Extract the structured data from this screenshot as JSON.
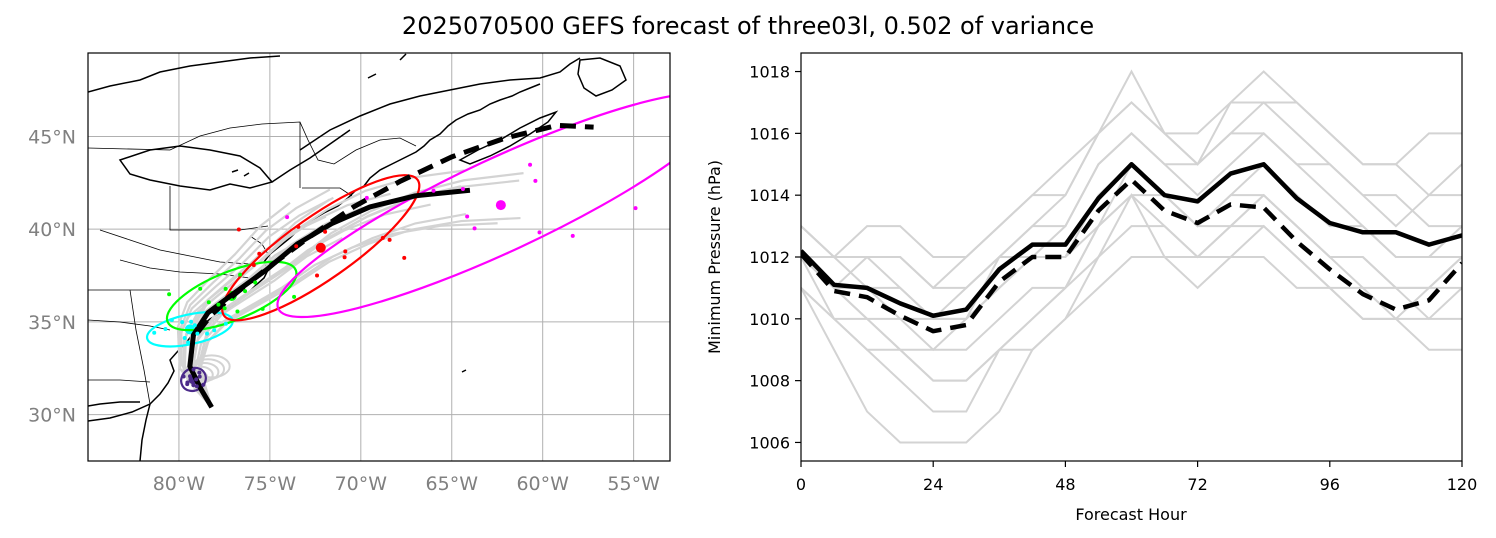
{
  "title": "2025070500 GEFS forecast of three03l, 0.502 of variance",
  "colors": {
    "ensemble_member": "#d3d3d3",
    "track_mean": "#000000",
    "ellipse_24h": "#00ffff",
    "ellipse_48h": "#00ff00",
    "ellipse_72h": "#ff0000",
    "ellipse_96h": "#ff00ff",
    "ellipse_0h": "#4b2a8a",
    "grid": "#b0b0b0"
  },
  "chart_data": [
    {
      "type": "line",
      "subtype": "map-track",
      "name": "track_map",
      "projection": "PlateCarree",
      "xlim": [
        -85,
        -53
      ],
      "ylim": [
        27.5,
        49.5
      ],
      "x_ticks": [
        -80,
        -75,
        -70,
        -65,
        -60,
        -55
      ],
      "x_tick_labels": [
        "80°W",
        "75°W",
        "70°W",
        "65°W",
        "60°W",
        "55°W"
      ],
      "y_ticks": [
        30,
        35,
        40,
        45
      ],
      "y_tick_labels": [
        "30°N",
        "35°N",
        "40°N",
        "45°N"
      ],
      "grid": true,
      "series": [
        {
          "style": "solid",
          "lon": [
            -78.2,
            -78.8,
            -79.4,
            -79.2,
            -78.4,
            -76.9,
            -75.2,
            -73.5,
            -71.6,
            -69.5,
            -67.0,
            -64.0
          ],
          "lat": [
            30.4,
            31.4,
            32.6,
            34.3,
            35.5,
            36.6,
            37.8,
            39.2,
            40.3,
            41.2,
            41.8,
            42.1
          ]
        },
        {
          "style": "dashed",
          "lon": [
            -79.0,
            -78.2,
            -76.8,
            -75.0,
            -72.8,
            -70.4,
            -67.8,
            -65.0,
            -62.1,
            -59.2,
            -57.2
          ],
          "lat": [
            34.4,
            35.4,
            36.6,
            38.0,
            39.6,
            41.2,
            42.6,
            43.9,
            44.9,
            45.6,
            45.5
          ]
        }
      ],
      "ellipses": [
        {
          "forecast_hour": 0,
          "center": [
            -79.2,
            31.9
          ],
          "semi_axes": [
            0.7,
            0.6
          ],
          "angle": 30
        },
        {
          "forecast_hour": 24,
          "center": [
            -79.4,
            34.6
          ],
          "semi_axes": [
            2.4,
            0.8
          ],
          "angle": 12
        },
        {
          "forecast_hour": 48,
          "center": [
            -77.1,
            36.4
          ],
          "semi_axes": [
            3.8,
            1.3
          ],
          "angle": 22
        },
        {
          "forecast_hour": 72,
          "center": [
            -72.2,
            39.0
          ],
          "semi_axes": [
            6.5,
            1.7
          ],
          "angle": 35
        },
        {
          "forecast_hour": 96,
          "center": [
            -62.3,
            41.3
          ],
          "semi_axes": [
            13.5,
            2.5
          ],
          "angle": 25
        }
      ]
    },
    {
      "type": "line",
      "name": "pressure",
      "xlabel": "Forecast Hour",
      "ylabel": "Minimum Pressure (hPa)",
      "xlim": [
        0,
        120
      ],
      "ylim": [
        1005.4,
        1018.6
      ],
      "x_ticks": [
        0,
        24,
        48,
        72,
        96,
        120
      ],
      "y_ticks": [
        1006,
        1008,
        1010,
        1012,
        1014,
        1016,
        1018
      ],
      "grid": false,
      "series": [
        {
          "style": "solid",
          "x": [
            0,
            6,
            12,
            18,
            24,
            30,
            36,
            42,
            48,
            54,
            60,
            66,
            72,
            78,
            84,
            90,
            96,
            102,
            108,
            114,
            120
          ],
          "values": [
            1012.2,
            1011.1,
            1011.0,
            1010.5,
            1010.1,
            1010.3,
            1011.6,
            1012.4,
            1012.4,
            1013.9,
            1015.0,
            1014.0,
            1013.8,
            1014.7,
            1015.0,
            1013.9,
            1013.1,
            1012.8,
            1012.8,
            1012.4,
            1012.7
          ]
        },
        {
          "style": "dashed",
          "x": [
            0,
            6,
            12,
            18,
            24,
            30,
            36,
            42,
            48,
            54,
            60,
            66,
            72,
            78,
            84,
            90,
            96,
            102,
            108,
            114,
            120
          ],
          "values": [
            1012.1,
            1010.9,
            1010.7,
            1010.1,
            1009.6,
            1009.8,
            1011.2,
            1012.0,
            1012.0,
            1013.5,
            1014.5,
            1013.5,
            1013.1,
            1013.7,
            1013.6,
            1012.5,
            1011.6,
            1010.8,
            1010.3,
            1010.6,
            1011.8
          ]
        }
      ],
      "ensemble_members": [
        {
          "x": [
            0,
            6,
            12,
            18,
            24,
            30,
            36,
            42,
            48,
            54,
            60,
            66,
            72,
            78,
            84,
            90,
            96,
            102,
            108,
            114,
            120
          ],
          "values": [
            1012,
            1011,
            1010,
            1009,
            1008,
            1008,
            1009,
            1010,
            1011,
            1013,
            1014,
            1013,
            1012,
            1013,
            1013,
            1012,
            1011,
            1010,
            1010,
            1011,
            1012
          ]
        },
        {
          "x": [
            0,
            6,
            12,
            18,
            24,
            30,
            36,
            42,
            48,
            54,
            60,
            66,
            72,
            78,
            84,
            90,
            96,
            102,
            108,
            114,
            120
          ],
          "values": [
            1013,
            1012,
            1012,
            1011,
            1010,
            1010,
            1012,
            1013,
            1013,
            1015,
            1016,
            1015,
            1014,
            1015,
            1016,
            1015,
            1014,
            1013,
            1012,
            1012,
            1013
          ]
        },
        {
          "x": [
            0,
            6,
            12,
            18,
            24,
            30,
            36,
            42,
            48,
            54,
            60,
            66,
            72,
            78,
            84,
            90,
            96,
            102,
            108,
            114,
            120
          ],
          "values": [
            1011,
            1009,
            1007,
            1006,
            1006,
            1006,
            1007,
            1009,
            1010,
            1012,
            1014,
            1012,
            1012,
            1013,
            1014,
            1013,
            1012,
            1011,
            1011,
            1010,
            1011
          ]
        },
        {
          "x": [
            0,
            6,
            12,
            18,
            24,
            30,
            36,
            42,
            48,
            54,
            60,
            66,
            72,
            78,
            84,
            90,
            96,
            102,
            108,
            114,
            120
          ],
          "values": [
            1012,
            1011,
            1011,
            1011,
            1010,
            1011,
            1012,
            1013,
            1014,
            1016,
            1017,
            1016,
            1015,
            1016,
            1017,
            1016,
            1015,
            1014,
            1014,
            1013,
            1013
          ]
        },
        {
          "x": [
            0,
            6,
            12,
            18,
            24,
            30,
            36,
            42,
            48,
            54,
            60,
            66,
            72,
            78,
            84,
            90,
            96,
            102,
            108,
            114,
            120
          ],
          "values": [
            1012,
            1010,
            1009,
            1008,
            1007,
            1007,
            1009,
            1010,
            1011,
            1013,
            1015,
            1014,
            1013,
            1014,
            1014,
            1013,
            1012,
            1012,
            1011,
            1011,
            1012
          ]
        },
        {
          "x": [
            0,
            6,
            12,
            18,
            24,
            30,
            36,
            42,
            48,
            54,
            60,
            66,
            72,
            78,
            84,
            90,
            96,
            102,
            108,
            114,
            120
          ],
          "values": [
            1013,
            1012,
            1013,
            1013,
            1012,
            1012,
            1013,
            1014,
            1014,
            1016,
            1018,
            1016,
            1015,
            1017,
            1018,
            1017,
            1016,
            1015,
            1015,
            1014,
            1014
          ]
        },
        {
          "x": [
            0,
            6,
            12,
            18,
            24,
            30,
            36,
            42,
            48,
            54,
            60,
            66,
            72,
            78,
            84,
            90,
            96,
            102,
            108,
            114,
            120
          ],
          "values": [
            1011,
            1010,
            1010,
            1009,
            1009,
            1009,
            1010,
            1011,
            1011,
            1012,
            1013,
            1013,
            1012,
            1012,
            1013,
            1012,
            1011,
            1011,
            1010,
            1010,
            1010
          ]
        },
        {
          "x": [
            0,
            6,
            12,
            18,
            24,
            30,
            36,
            42,
            48,
            54,
            60,
            66,
            72,
            78,
            84,
            90,
            96,
            102,
            108,
            114,
            120
          ],
          "values": [
            1012,
            1011,
            1012,
            1012,
            1011,
            1011,
            1012,
            1012,
            1013,
            1015,
            1016,
            1015,
            1015,
            1016,
            1016,
            1015,
            1015,
            1014,
            1013,
            1014,
            1015
          ]
        },
        {
          "x": [
            0,
            6,
            12,
            18,
            24,
            30,
            36,
            42,
            48,
            54,
            60,
            66,
            72,
            78,
            84,
            90,
            96,
            102,
            108,
            114,
            120
          ],
          "values": [
            1012,
            1012,
            1011,
            1010,
            1010,
            1010,
            1011,
            1012,
            1012,
            1014,
            1015,
            1014,
            1013,
            1014,
            1015,
            1014,
            1013,
            1013,
            1012,
            1012,
            1012
          ]
        },
        {
          "x": [
            0,
            6,
            12,
            18,
            24,
            30,
            36,
            42,
            48,
            54,
            60,
            66,
            72,
            78,
            84,
            90,
            96,
            102,
            108,
            114,
            120
          ],
          "values": [
            1011,
            1010,
            1009,
            1009,
            1008,
            1008,
            1009,
            1009,
            1010,
            1011,
            1012,
            1012,
            1011,
            1012,
            1012,
            1011,
            1011,
            1010,
            1010,
            1009,
            1009
          ]
        },
        {
          "x": [
            0,
            6,
            12,
            18,
            24,
            30,
            36,
            42,
            48,
            54,
            60,
            66,
            72,
            78,
            84,
            90,
            96,
            102,
            108,
            114,
            120
          ],
          "values": [
            1013,
            1012,
            1012,
            1012,
            1011,
            1012,
            1013,
            1014,
            1015,
            1016,
            1017,
            1016,
            1016,
            1017,
            1017,
            1017,
            1016,
            1015,
            1015,
            1016,
            1016
          ]
        },
        {
          "x": [
            0,
            6,
            12,
            18,
            24,
            30,
            36,
            42,
            48,
            54,
            60,
            66,
            72,
            78,
            84,
            90,
            96,
            102,
            108,
            114,
            120
          ],
          "values": [
            1012,
            1011,
            1010,
            1010,
            1009,
            1010,
            1011,
            1012,
            1012,
            1013,
            1014,
            1014,
            1013,
            1013,
            1014,
            1013,
            1012,
            1012,
            1011,
            1011,
            1011
          ]
        }
      ]
    }
  ]
}
